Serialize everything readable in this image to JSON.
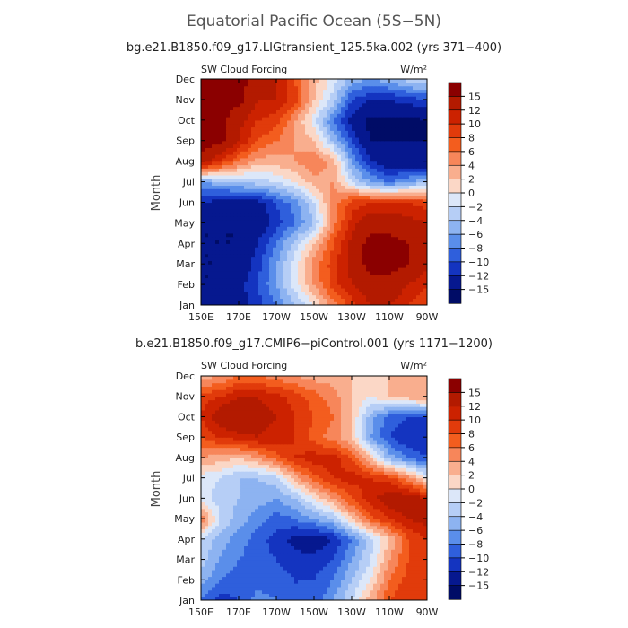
{
  "figure": {
    "title": "Equatorial Pacific Ocean (5S−5N)"
  },
  "chart_data": [
    {
      "type": "heatmap",
      "title": "bg.e21.B1850.f09_g17.LIGtransient_125.5ka.002 (yrs 371−400)",
      "left_label": "SW Cloud Forcing",
      "right_label": "W/m²",
      "ylabel": "Month",
      "x_ticks": [
        "150E",
        "170E",
        "170W",
        "150W",
        "130W",
        "110W",
        "90W"
      ],
      "x_range_lon": [
        150,
        270
      ],
      "months": [
        "Jan",
        "Feb",
        "Mar",
        "Apr",
        "May",
        "Jun",
        "Jul",
        "Aug",
        "Sep",
        "Oct",
        "Nov",
        "Dec"
      ],
      "lon": [
        150,
        160,
        170,
        180,
        190,
        200,
        210,
        220,
        230,
        240,
        250,
        260,
        270
      ],
      "values": [
        [
          -15,
          -14,
          -13,
          -11,
          -8,
          -4,
          0,
          5,
          9,
          12,
          12,
          10,
          8
        ],
        [
          -15,
          -15,
          -13,
          -10,
          -6,
          -1,
          4,
          9,
          12,
          14,
          14,
          12,
          10
        ],
        [
          -15,
          -15,
          -14,
          -11,
          -6,
          -1,
          5,
          9,
          13,
          16,
          16,
          15,
          13
        ],
        [
          -15,
          -15,
          -15,
          -12,
          -8,
          -3,
          2,
          8,
          13,
          16,
          16,
          15,
          13
        ],
        [
          -15,
          -15,
          -15,
          -14,
          -11,
          -8,
          -4,
          5,
          11,
          14,
          14,
          13,
          12
        ],
        [
          -12,
          -13,
          -13,
          -13,
          -10,
          -7,
          -2,
          5,
          9,
          10,
          10,
          10,
          9
        ],
        [
          -6,
          -5,
          -4,
          -3,
          -2,
          0,
          3,
          4,
          -2,
          -6,
          -8,
          -6,
          -4
        ],
        [
          14,
          10,
          6,
          3,
          3,
          4,
          6,
          3,
          -6,
          -12,
          -14,
          -14,
          -15
        ],
        [
          16,
          16,
          12,
          8,
          6,
          4,
          2,
          -4,
          -10,
          -15,
          -15,
          -15,
          -15
        ],
        [
          16,
          16,
          13,
          10,
          9,
          4,
          -1,
          -8,
          -13,
          -16,
          -16,
          -16,
          -15
        ],
        [
          16,
          16,
          16,
          12,
          12,
          9,
          2,
          -3,
          -10,
          -12,
          -12,
          -11,
          -10
        ],
        [
          15,
          15,
          16,
          14,
          12,
          8,
          3,
          -1,
          -5,
          -6,
          -5,
          -3,
          -2
        ]
      ],
      "levels": [
        15,
        12,
        10,
        8,
        6,
        4,
        2,
        0,
        -2,
        -4,
        -6,
        -8,
        -10,
        -12,
        -15
      ],
      "colorbar_labels": [
        "15",
        "12",
        "10",
        "8",
        "6",
        "4",
        "2",
        "0",
        "−2",
        "−4",
        "−6",
        "−8",
        "−10",
        "−12",
        "−15"
      ],
      "colors": [
        "#8b0000",
        "#b31a00",
        "#cc2200",
        "#e13b0b",
        "#f35d1e",
        "#f7865a",
        "#f9ae8e",
        "#fbd7c6",
        "#dce7f9",
        "#b6cef6",
        "#8db3f1",
        "#5a8eea",
        "#2f5fdc",
        "#1434c0",
        "#06188f",
        "#000c66"
      ],
      "grid": false,
      "colorbar_position": "right"
    },
    {
      "type": "heatmap",
      "title": "b.e21.B1850.f09_g17.CMIP6−piControl.001 (yrs 1171−1200)",
      "left_label": "SW Cloud Forcing",
      "right_label": "W/m²",
      "ylabel": "Month",
      "x_ticks": [
        "150E",
        "170E",
        "170W",
        "150W",
        "130W",
        "110W",
        "90W"
      ],
      "x_range_lon": [
        150,
        270
      ],
      "months": [
        "Jan",
        "Feb",
        "Mar",
        "Apr",
        "May",
        "Jun",
        "Jul",
        "Aug",
        "Sep",
        "Oct",
        "Nov",
        "Dec"
      ],
      "lon": [
        150,
        160,
        170,
        180,
        190,
        200,
        210,
        220,
        230,
        240,
        250,
        260,
        270
      ],
      "values": [
        [
          -8,
          -11,
          -10,
          -7,
          -8,
          -10,
          -10,
          -6,
          -2,
          3,
          8,
          10,
          9
        ],
        [
          -5,
          -8,
          -9,
          -9,
          -9,
          -10,
          -10,
          -8,
          -4,
          0,
          6,
          9,
          10
        ],
        [
          -3,
          -6,
          -8,
          -9,
          -10,
          -11,
          -11,
          -10,
          -6,
          -2,
          4,
          8,
          10
        ],
        [
          -2,
          -5,
          -7,
          -9,
          -11,
          -13,
          -14,
          -12,
          -8,
          -3,
          2,
          8,
          10
        ],
        [
          6,
          -2,
          -5,
          -7,
          -9,
          -8,
          -6,
          -4,
          2,
          7,
          10,
          12,
          13
        ],
        [
          -1,
          -3,
          -4,
          -5,
          -6,
          -4,
          0,
          4,
          8,
          11,
          14,
          14,
          12
        ],
        [
          -1,
          -2,
          -4,
          -4,
          -3,
          3,
          7,
          10,
          11,
          10,
          9,
          5,
          0
        ],
        [
          4,
          3,
          2,
          4,
          7,
          10,
          11,
          11,
          8,
          2,
          -5,
          -8,
          -10
        ],
        [
          8,
          10,
          11,
          12,
          11,
          10,
          7,
          5,
          2,
          -6,
          -10,
          -12,
          -12
        ],
        [
          10,
          14,
          15,
          13,
          12,
          10,
          8,
          6,
          2,
          -5,
          -9,
          -10,
          -10
        ],
        [
          9,
          10,
          12,
          12,
          11,
          9,
          7,
          5,
          2,
          0,
          2,
          3,
          4
        ],
        [
          3,
          4,
          6,
          6,
          5,
          4,
          3,
          3,
          2,
          1,
          2,
          3,
          3
        ]
      ],
      "levels": [
        15,
        12,
        10,
        8,
        6,
        4,
        2,
        0,
        -2,
        -4,
        -6,
        -8,
        -10,
        -12,
        -15
      ],
      "colorbar_labels": [
        "15",
        "12",
        "10",
        "8",
        "6",
        "4",
        "2",
        "0",
        "−2",
        "−4",
        "−6",
        "−8",
        "−10",
        "−12",
        "−15"
      ],
      "colors": [
        "#8b0000",
        "#b31a00",
        "#cc2200",
        "#e13b0b",
        "#f35d1e",
        "#f7865a",
        "#f9ae8e",
        "#fbd7c6",
        "#dce7f9",
        "#b6cef6",
        "#8db3f1",
        "#5a8eea",
        "#2f5fdc",
        "#1434c0",
        "#06188f",
        "#000c66"
      ],
      "grid": false,
      "colorbar_position": "right"
    }
  ]
}
